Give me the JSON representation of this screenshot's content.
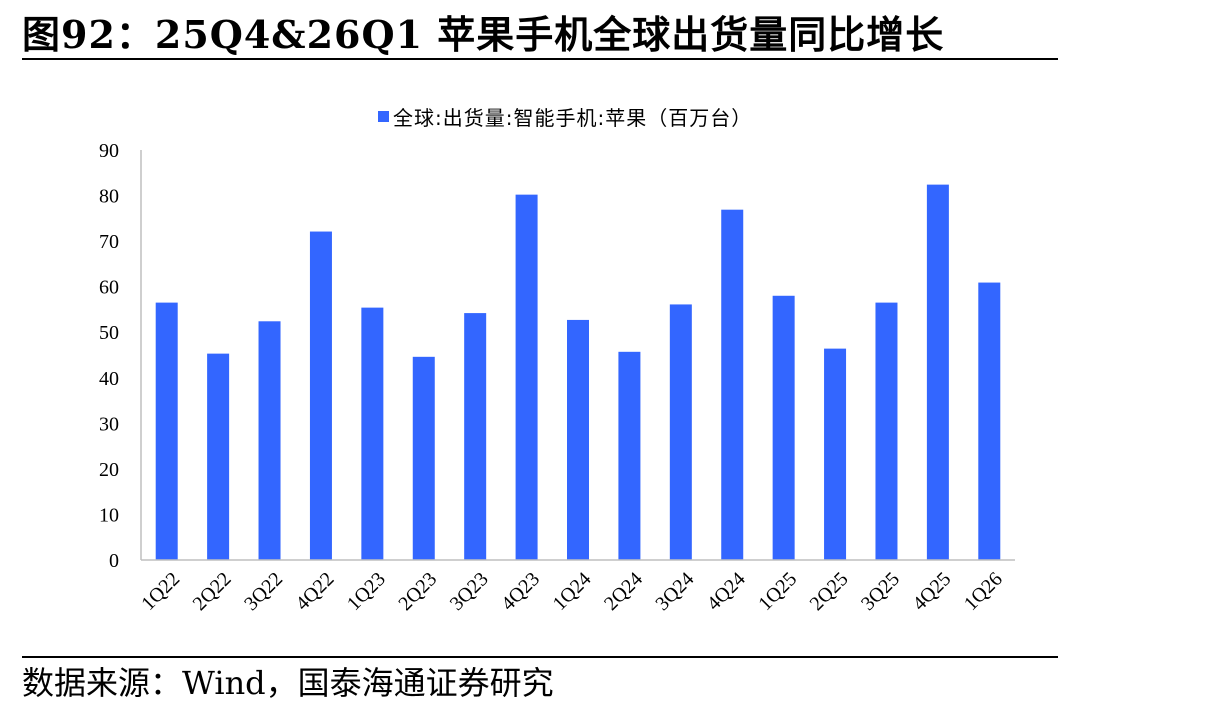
{
  "figure": {
    "title": "图92：25Q4&26Q1 苹果手机全球出货量同比增长",
    "source": "数据来源：Wind，国泰海通证券研究"
  },
  "colors": {
    "bar": "#3366ff",
    "axis": "#bfbfbf"
  },
  "chart_data": {
    "type": "bar",
    "categories": [
      "1Q22",
      "2Q22",
      "3Q22",
      "4Q22",
      "1Q23",
      "2Q23",
      "3Q23",
      "4Q23",
      "1Q24",
      "2Q24",
      "3Q24",
      "4Q24",
      "1Q25",
      "2Q25",
      "3Q25",
      "4Q25",
      "1Q26"
    ],
    "series": [
      {
        "name": "全球:出货量:智能手机:苹果（百万台）",
        "values": [
          56.5,
          45.3,
          52.4,
          72.1,
          55.4,
          44.6,
          54.2,
          80.2,
          52.7,
          45.7,
          56.1,
          76.9,
          58.0,
          46.4,
          56.5,
          82.4,
          60.9
        ]
      }
    ],
    "ylim": [
      0,
      90
    ],
    "yticks": [
      0,
      10,
      20,
      30,
      40,
      50,
      60,
      70,
      80,
      90
    ],
    "grid": false,
    "legend": "top-center",
    "xlabel": "",
    "ylabel": ""
  }
}
